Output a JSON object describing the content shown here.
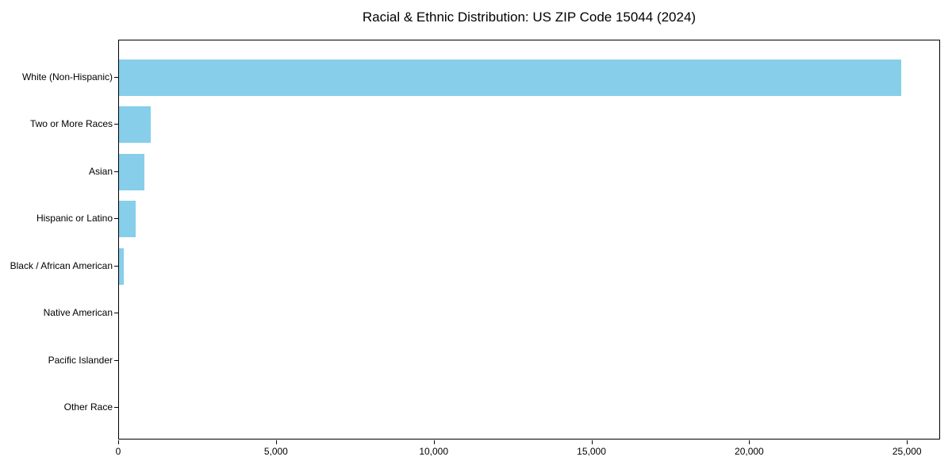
{
  "figure": {
    "background": "#ffffff"
  },
  "chart_data": {
    "type": "bar",
    "orientation": "horizontal",
    "title": "Racial & Ethnic Distribution: US ZIP Code 15044 (2024)",
    "categories": [
      "White (Non-Hispanic)",
      "Two or More Races",
      "Asian",
      "Hispanic or Latino",
      "Black / African American",
      "Native American",
      "Pacific Islander",
      "Other Race"
    ],
    "values": [
      24800,
      1000,
      800,
      530,
      150,
      0,
      0,
      0
    ],
    "xlabel": "",
    "ylabel": "",
    "xlim": [
      0,
      26050
    ],
    "x_ticks": [
      0,
      5000,
      10000,
      15000,
      20000,
      25000
    ],
    "x_tick_labels": [
      "0",
      "5,000",
      "10,000",
      "15,000",
      "20,000",
      "25,000"
    ],
    "bar_color": "#87CEEB",
    "axis_color": "#000000",
    "text_color": "#000000",
    "grid": false,
    "legend": null
  }
}
